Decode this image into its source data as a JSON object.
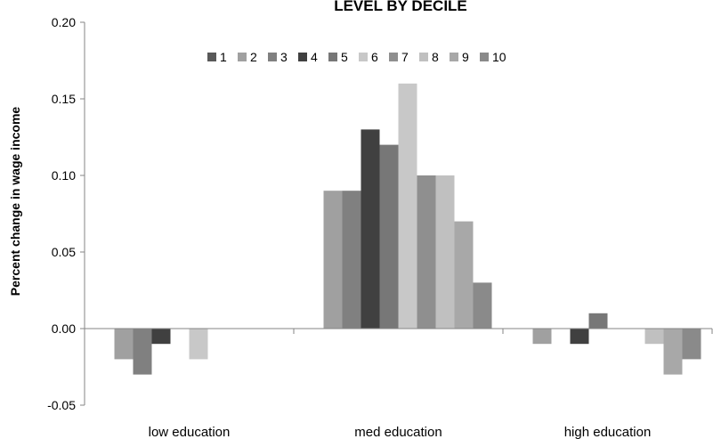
{
  "chart_data": {
    "type": "bar",
    "title": "LEVEL BY DECILE",
    "xlabel": "",
    "ylabel": "Percent change in wage income",
    "ylim": [
      -0.05,
      0.2
    ],
    "yticks": [
      "0.20",
      "0.15",
      "0.10",
      "0.05",
      "0.00",
      "-0.05"
    ],
    "tick_values": [
      0.2,
      0.15,
      0.1,
      0.05,
      0.0,
      -0.05
    ],
    "grid": false,
    "legend_position": "top",
    "categories": [
      "low education",
      "med education",
      "high education"
    ],
    "series": [
      {
        "name": "1",
        "color": "#595959",
        "values": [
          0.0,
          0.0,
          0.0
        ]
      },
      {
        "name": "2",
        "color": "#a0a0a0",
        "values": [
          -0.02,
          0.09,
          -0.01
        ]
      },
      {
        "name": "3",
        "color": "#808080",
        "values": [
          -0.03,
          0.09,
          0.0
        ]
      },
      {
        "name": "4",
        "color": "#404040",
        "values": [
          -0.01,
          0.13,
          -0.01
        ]
      },
      {
        "name": "5",
        "color": "#777777",
        "values": [
          0.0,
          0.12,
          0.01
        ]
      },
      {
        "name": "6",
        "color": "#c8c8c8",
        "values": [
          -0.02,
          0.16,
          0.0
        ]
      },
      {
        "name": "7",
        "color": "#8f8f8f",
        "values": [
          0.0,
          0.1,
          0.0
        ]
      },
      {
        "name": "8",
        "color": "#c0c0c0",
        "values": [
          0.0,
          0.1,
          -0.01
        ]
      },
      {
        "name": "9",
        "color": "#a8a8a8",
        "values": [
          0.0,
          0.07,
          -0.03
        ]
      },
      {
        "name": "10",
        "color": "#8a8a8a",
        "values": [
          0.0,
          0.03,
          -0.02
        ]
      }
    ]
  }
}
